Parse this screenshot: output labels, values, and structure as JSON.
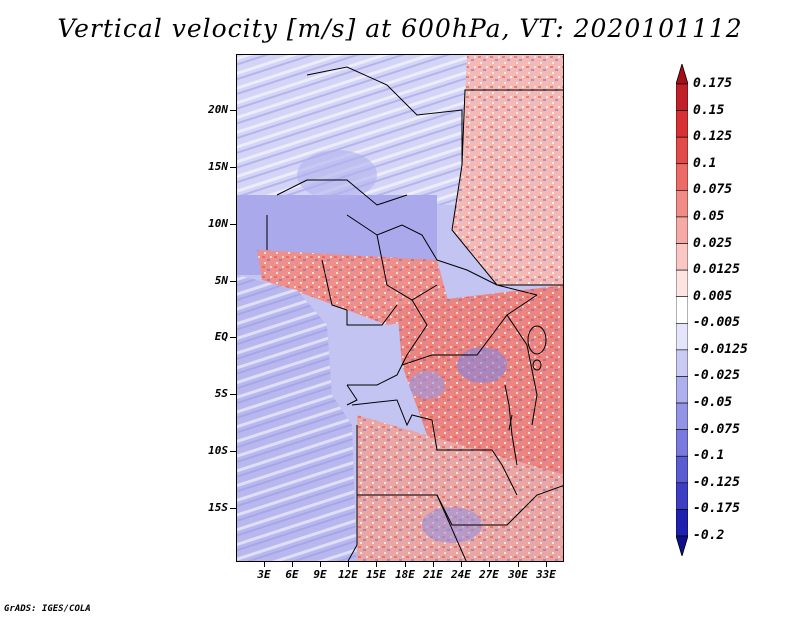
{
  "title": "Vertical velocity [m/s] at 600hPa, VT: 2020101112",
  "credit": "GrADS: IGES/COLA",
  "lat_labels": [
    "20N",
    "15N",
    "10N",
    "5N",
    "EQ",
    "5S",
    "10S",
    "15S"
  ],
  "lon_labels": [
    "3E",
    "6E",
    "9E",
    "12E",
    "15E",
    "18E",
    "21E",
    "24E",
    "27E",
    "30E",
    "33E"
  ],
  "colorbar": {
    "levels": [
      "0.175",
      "0.15",
      "0.125",
      "0.1",
      "0.075",
      "0.05",
      "0.025",
      "0.0125",
      "0.005",
      "-0.005",
      "-0.0125",
      "-0.025",
      "-0.05",
      "-0.075",
      "-0.1",
      "-0.125",
      "-0.175",
      "-0.2"
    ],
    "colors": [
      "#a50f15",
      "#c0202a",
      "#d73035",
      "#e34a4a",
      "#ec6b66",
      "#f18b85",
      "#f6aaa5",
      "#fac8c4",
      "#fde4e2",
      "#ffffff",
      "#e4e4fb",
      "#cacaf5",
      "#afafee",
      "#9494e6",
      "#7a7ade",
      "#5c5cd2",
      "#3e3ec4",
      "#2020b0",
      "#10108e"
    ]
  }
}
